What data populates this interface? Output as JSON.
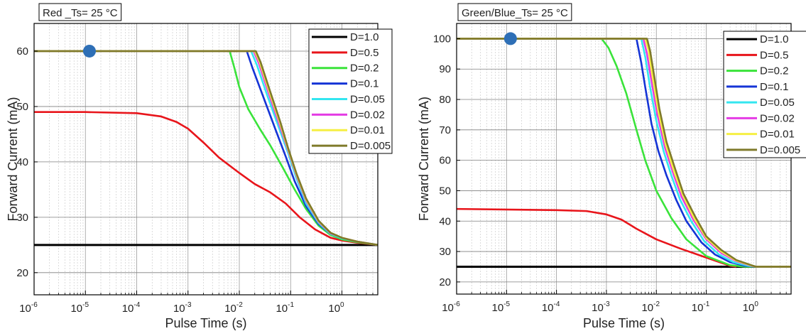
{
  "chart_data": [
    {
      "type": "line",
      "title": "Red _Ts= 25 °C",
      "xlabel": "Pulse Time (s)",
      "ylabel": "Forward Current (mA)",
      "x_scale": "log",
      "xlim": [
        1e-06,
        5
      ],
      "ylim": [
        16,
        65
      ],
      "xticks": [
        {
          "value": 1e-06,
          "base": "10",
          "exp": "-6"
        },
        {
          "value": 1e-05,
          "base": "10",
          "exp": "-5"
        },
        {
          "value": 0.0001,
          "base": "10",
          "exp": "-4"
        },
        {
          "value": 0.001,
          "base": "10",
          "exp": "-3"
        },
        {
          "value": 0.01,
          "base": "10",
          "exp": "-2"
        },
        {
          "value": 0.1,
          "base": "10",
          "exp": "-1"
        },
        {
          "value": 1,
          "base": "10",
          "exp": "0"
        }
      ],
      "yticks": [
        20,
        30,
        40,
        50,
        60
      ],
      "grid": true,
      "legend_position": "top-right",
      "marker": {
        "x": 1.2e-05,
        "y": 60,
        "color": "#2e6fb6"
      },
      "series": [
        {
          "name": "D=1.0",
          "color": "#000000",
          "points": [
            [
              1e-06,
              25
            ],
            [
              5,
              25
            ]
          ]
        },
        {
          "name": "D=0.5",
          "color": "#e8151b",
          "points": [
            [
              1e-06,
              49
            ],
            [
              1e-05,
              49
            ],
            [
              0.0001,
              48.8
            ],
            [
              0.0003,
              48.2
            ],
            [
              0.0006,
              47.2
            ],
            [
              0.001,
              46
            ],
            [
              0.002,
              43.5
            ],
            [
              0.004,
              40.8
            ],
            [
              0.01,
              38
            ],
            [
              0.02,
              36
            ],
            [
              0.04,
              34.5
            ],
            [
              0.08,
              32.5
            ],
            [
              0.15,
              30
            ],
            [
              0.3,
              27.8
            ],
            [
              0.6,
              26.3
            ],
            [
              1,
              25.8
            ],
            [
              2,
              25.4
            ],
            [
              5,
              25
            ]
          ]
        },
        {
          "name": "D=0.2",
          "color": "#3ae33a",
          "points": [
            [
              1e-06,
              60
            ],
            [
              0.0065,
              60
            ],
            [
              0.008,
              57
            ],
            [
              0.01,
              53.5
            ],
            [
              0.015,
              49.5
            ],
            [
              0.025,
              46
            ],
            [
              0.04,
              43
            ],
            [
              0.07,
              39
            ],
            [
              0.12,
              35
            ],
            [
              0.2,
              31.5
            ],
            [
              0.35,
              28.5
            ],
            [
              0.6,
              26.8
            ],
            [
              1,
              26
            ],
            [
              2,
              25.5
            ],
            [
              5,
              25
            ]
          ]
        },
        {
          "name": "D=0.1",
          "color": "#1534d6",
          "points": [
            [
              1e-06,
              60
            ],
            [
              0.014,
              60
            ],
            [
              0.018,
              57
            ],
            [
              0.03,
              51.5
            ],
            [
              0.05,
              46
            ],
            [
              0.08,
              41
            ],
            [
              0.12,
              36.5
            ],
            [
              0.2,
              32
            ],
            [
              0.35,
              28.8
            ],
            [
              0.6,
              27
            ],
            [
              1,
              26.2
            ],
            [
              2,
              25.6
            ],
            [
              5,
              25
            ]
          ]
        },
        {
          "name": "D=0.05",
          "color": "#33e6f0",
          "points": [
            [
              1e-06,
              60
            ],
            [
              0.017,
              60
            ],
            [
              0.022,
              57.5
            ],
            [
              0.035,
              52
            ],
            [
              0.06,
              46
            ],
            [
              0.09,
              41.5
            ],
            [
              0.13,
              37
            ],
            [
              0.2,
              32.5
            ],
            [
              0.35,
              29
            ],
            [
              0.6,
              27
            ],
            [
              1,
              26.2
            ],
            [
              2,
              25.6
            ],
            [
              5,
              25
            ]
          ]
        },
        {
          "name": "D=0.02",
          "color": "#e43be4",
          "points": [
            [
              1e-06,
              60
            ],
            [
              0.019,
              60
            ],
            [
              0.024,
              57.8
            ],
            [
              0.037,
              52.5
            ],
            [
              0.06,
              46.8
            ],
            [
              0.09,
              42
            ],
            [
              0.13,
              37.5
            ],
            [
              0.2,
              33
            ],
            [
              0.35,
              29.2
            ],
            [
              0.6,
              27.1
            ],
            [
              1,
              26.3
            ],
            [
              2,
              25.6
            ],
            [
              5,
              25
            ]
          ]
        },
        {
          "name": "D=0.01",
          "color": "#f6ef43",
          "points": [
            [
              1e-06,
              60
            ],
            [
              0.02,
              60
            ],
            [
              0.025,
              58
            ],
            [
              0.038,
              52.8
            ],
            [
              0.062,
              47
            ],
            [
              0.09,
              42.2
            ],
            [
              0.13,
              37.7
            ],
            [
              0.2,
              33.2
            ],
            [
              0.35,
              29.3
            ],
            [
              0.6,
              27.2
            ],
            [
              1,
              26.3
            ],
            [
              2,
              25.6
            ],
            [
              5,
              25
            ]
          ]
        },
        {
          "name": "D=0.005",
          "color": "#7f7a2a",
          "points": [
            [
              1e-06,
              60
            ],
            [
              0.021,
              60
            ],
            [
              0.026,
              58
            ],
            [
              0.039,
              53
            ],
            [
              0.063,
              47.2
            ],
            [
              0.09,
              42.4
            ],
            [
              0.13,
              37.9
            ],
            [
              0.2,
              33.4
            ],
            [
              0.35,
              29.4
            ],
            [
              0.6,
              27.2
            ],
            [
              1,
              26.3
            ],
            [
              2,
              25.6
            ],
            [
              5,
              25
            ]
          ]
        }
      ]
    },
    {
      "type": "line",
      "title": "Green/Blue_Ts= 25 °C",
      "xlabel": "Pulse Time (s)",
      "ylabel": "Forward Current (mA)",
      "x_scale": "log",
      "xlim": [
        1e-06,
        5
      ],
      "ylim": [
        16,
        105
      ],
      "xticks": [
        {
          "value": 1e-06,
          "base": "10",
          "exp": "-6"
        },
        {
          "value": 1e-05,
          "base": "10",
          "exp": "-5"
        },
        {
          "value": 0.0001,
          "base": "10",
          "exp": "-4"
        },
        {
          "value": 0.001,
          "base": "10",
          "exp": "-3"
        },
        {
          "value": 0.01,
          "base": "10",
          "exp": "-2"
        },
        {
          "value": 0.1,
          "base": "10",
          "exp": "-1"
        },
        {
          "value": 1,
          "base": "10",
          "exp": "0"
        }
      ],
      "yticks": [
        20,
        30,
        40,
        50,
        60,
        70,
        80,
        90,
        100
      ],
      "grid": true,
      "legend_position": "top-right",
      "marker": {
        "x": 1.2e-05,
        "y": 100,
        "color": "#2e6fb6"
      },
      "series": [
        {
          "name": "D=1.0",
          "color": "#000000",
          "points": [
            [
              1e-06,
              25
            ],
            [
              5,
              25
            ]
          ]
        },
        {
          "name": "D=0.5",
          "color": "#e8151b",
          "points": [
            [
              1e-06,
              44
            ],
            [
              0.0001,
              43.6
            ],
            [
              0.0004,
              43.3
            ],
            [
              0.001,
              42.2
            ],
            [
              0.002,
              40.5
            ],
            [
              0.004,
              37.5
            ],
            [
              0.01,
              34
            ],
            [
              0.03,
              31
            ],
            [
              0.1,
              28
            ],
            [
              0.3,
              25.3
            ],
            [
              0.4,
              25
            ]
          ]
        },
        {
          "name": "D=0.2",
          "color": "#3ae33a",
          "points": [
            [
              1e-06,
              100
            ],
            [
              0.0008,
              100
            ],
            [
              0.0011,
              97
            ],
            [
              0.0016,
              91
            ],
            [
              0.0025,
              82
            ],
            [
              0.004,
              70
            ],
            [
              0.006,
              60
            ],
            [
              0.01,
              50
            ],
            [
              0.02,
              41
            ],
            [
              0.04,
              34
            ],
            [
              0.1,
              28.5
            ],
            [
              0.3,
              25.5
            ],
            [
              0.6,
              25
            ],
            [
              5,
              25
            ]
          ]
        },
        {
          "name": "D=0.1",
          "color": "#1534d6",
          "points": [
            [
              1e-06,
              100
            ],
            [
              0.004,
              100
            ],
            [
              0.005,
              92
            ],
            [
              0.006,
              84
            ],
            [
              0.008,
              72
            ],
            [
              0.011,
              63
            ],
            [
              0.016,
              55
            ],
            [
              0.025,
              47
            ],
            [
              0.04,
              40
            ],
            [
              0.08,
              33
            ],
            [
              0.15,
              29
            ],
            [
              0.3,
              26.5
            ],
            [
              0.6,
              25.3
            ],
            [
              1,
              25
            ],
            [
              5,
              25
            ]
          ]
        },
        {
          "name": "D=0.05",
          "color": "#33e6f0",
          "points": [
            [
              1e-06,
              100
            ],
            [
              0.005,
              100
            ],
            [
              0.006,
              94
            ],
            [
              0.0075,
              84
            ],
            [
              0.01,
              73
            ],
            [
              0.014,
              63
            ],
            [
              0.02,
              55
            ],
            [
              0.03,
              47
            ],
            [
              0.05,
              40
            ],
            [
              0.09,
              33.5
            ],
            [
              0.18,
              29
            ],
            [
              0.35,
              26.5
            ],
            [
              0.7,
              25.3
            ],
            [
              1,
              25
            ],
            [
              5,
              25
            ]
          ]
        },
        {
          "name": "D=0.02",
          "color": "#e43be4",
          "points": [
            [
              1e-06,
              100
            ],
            [
              0.0055,
              100
            ],
            [
              0.0065,
              95
            ],
            [
              0.008,
              86
            ],
            [
              0.0105,
              75
            ],
            [
              0.015,
              64
            ],
            [
              0.022,
              55.5
            ],
            [
              0.032,
              48
            ],
            [
              0.055,
              40.5
            ],
            [
              0.1,
              34
            ],
            [
              0.2,
              29.5
            ],
            [
              0.4,
              26.8
            ],
            [
              0.8,
              25.3
            ],
            [
              1,
              25
            ],
            [
              5,
              25
            ]
          ]
        },
        {
          "name": "D=0.01",
          "color": "#f6ef43",
          "points": [
            [
              1e-06,
              100
            ],
            [
              0.006,
              100
            ],
            [
              0.007,
              96
            ],
            [
              0.0085,
              87
            ],
            [
              0.011,
              76
            ],
            [
              0.0155,
              65
            ],
            [
              0.023,
              56
            ],
            [
              0.034,
              48.5
            ],
            [
              0.057,
              41
            ],
            [
              0.1,
              34.5
            ],
            [
              0.2,
              30
            ],
            [
              0.4,
              27
            ],
            [
              0.8,
              25.4
            ],
            [
              1,
              25
            ],
            [
              5,
              25
            ]
          ]
        },
        {
          "name": "D=0.005",
          "color": "#7f7a2a",
          "points": [
            [
              1e-06,
              100
            ],
            [
              0.0065,
              100
            ],
            [
              0.0075,
              96
            ],
            [
              0.009,
              88
            ],
            [
              0.0115,
              77
            ],
            [
              0.016,
              66
            ],
            [
              0.024,
              57
            ],
            [
              0.035,
              49
            ],
            [
              0.06,
              41.5
            ],
            [
              0.1,
              35
            ],
            [
              0.2,
              30.5
            ],
            [
              0.4,
              27.2
            ],
            [
              0.8,
              25.5
            ],
            [
              1,
              25
            ],
            [
              5,
              25
            ]
          ]
        }
      ]
    }
  ]
}
